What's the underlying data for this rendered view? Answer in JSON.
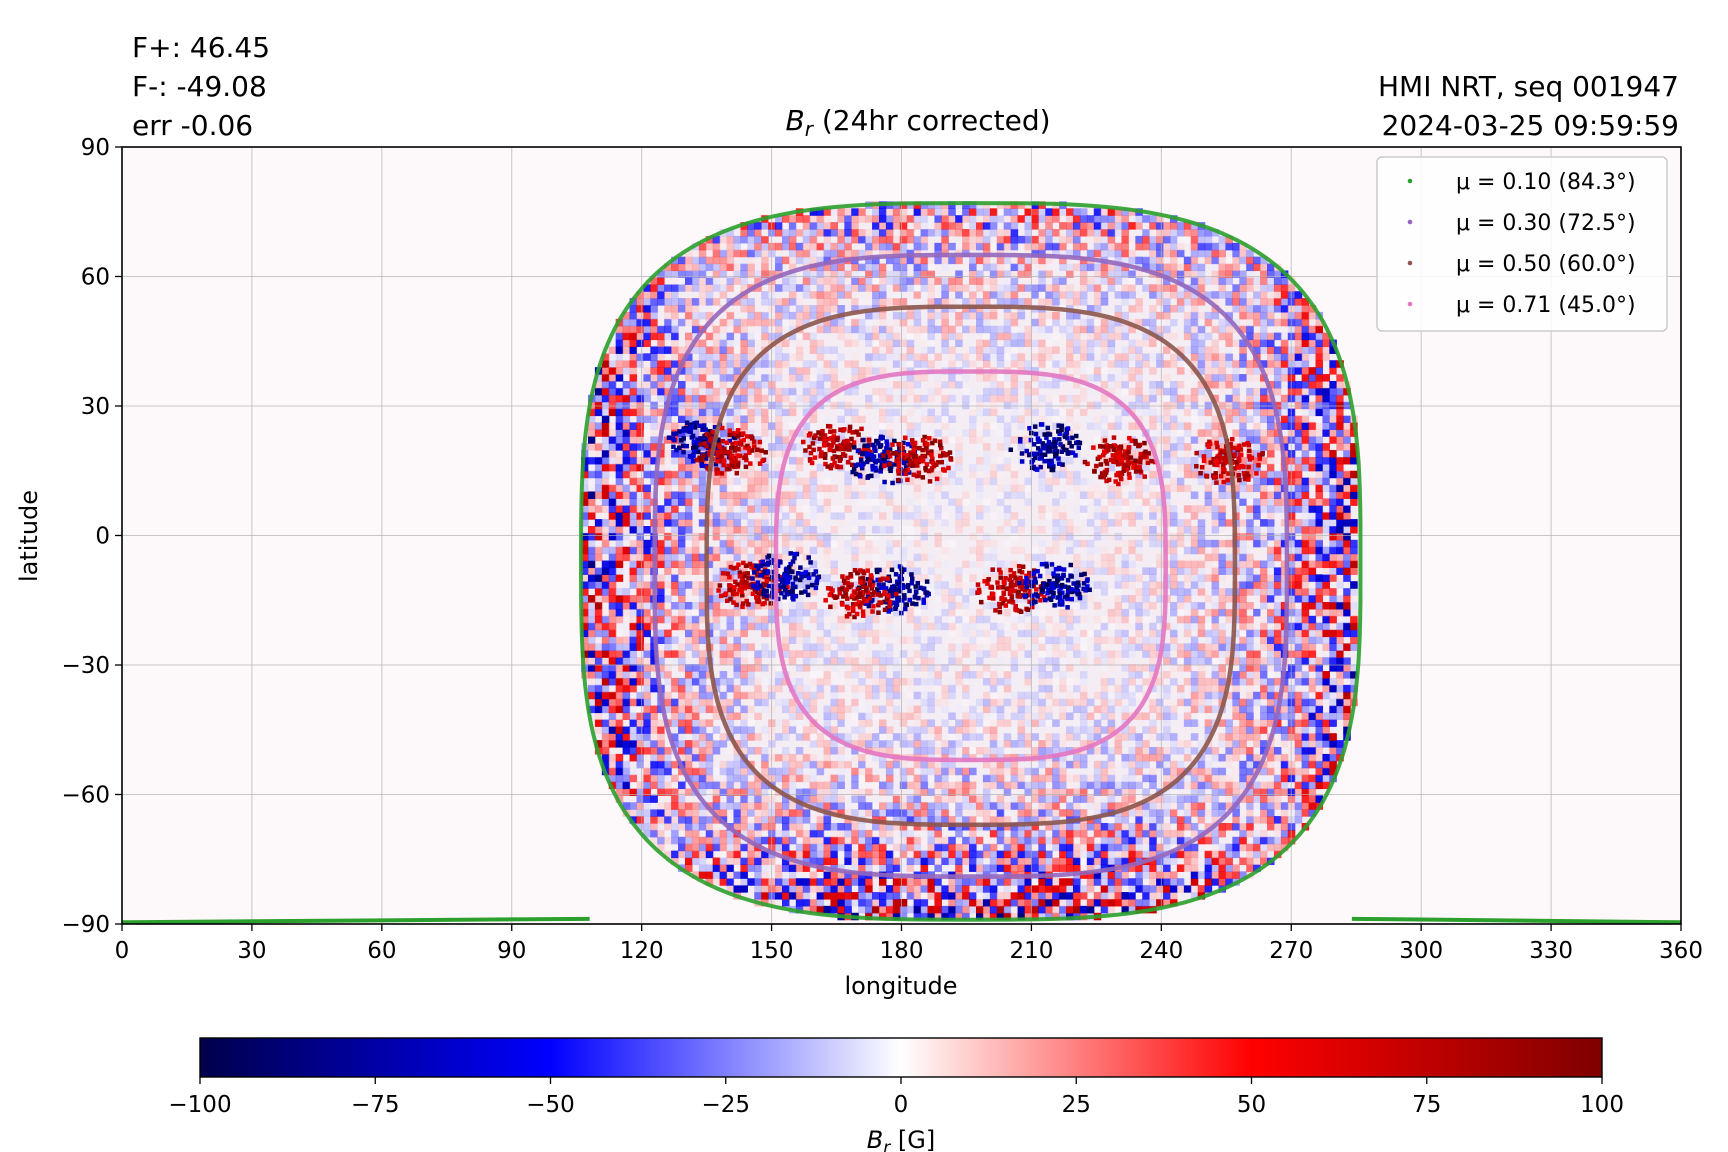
{
  "chart_data": {
    "type": "heatmap",
    "title": {
      "symbol": "B",
      "subscript": "r",
      "text": " (24hr corrected)"
    },
    "xlabel": "longitude",
    "ylabel": "latitude",
    "xlim": [
      0,
      360
    ],
    "ylim": [
      -90,
      90
    ],
    "xticks": [
      0,
      30,
      60,
      90,
      120,
      150,
      180,
      210,
      240,
      270,
      300,
      330,
      360
    ],
    "yticks": [
      90,
      60,
      30,
      0,
      -30,
      -60,
      -90
    ],
    "ytick_labels": [
      "90",
      "60",
      "30",
      "0",
      "−30",
      "−60",
      "−90"
    ],
    "grid": true,
    "stats": [
      "F+: 46.45",
      "F-: -49.08",
      "err -0.06"
    ],
    "source": [
      "HMI NRT, seq 001947",
      "2024-03-25 09:59:59"
    ],
    "legend_position": "top-right",
    "mu_contours": [
      {
        "label": "μ = 0.10 (84.3°)",
        "mu": 0.1,
        "color": "#2ca02c",
        "lon_center": 196,
        "half_width": 90,
        "lat_top": 77,
        "lat_bottom": -89
      },
      {
        "label": "μ = 0.30 (72.5°)",
        "mu": 0.3,
        "color": "#9467bd",
        "lon_center": 196,
        "half_width": 73,
        "lat_top": 65,
        "lat_bottom": -79
      },
      {
        "label": "μ = 0.50 (60.0°)",
        "mu": 0.5,
        "color": "#8c564b",
        "lon_center": 196,
        "half_width": 61,
        "lat_top": 53,
        "lat_bottom": -67
      },
      {
        "label": "μ = 0.71 (45.0°)",
        "mu": 0.71,
        "color": "#e377c2",
        "lon_center": 196,
        "half_width": 45,
        "lat_top": 38,
        "lat_bottom": -52
      }
    ],
    "active_regions": [
      {
        "lon": 134,
        "lat": 22,
        "sign": "negative"
      },
      {
        "lon": 140,
        "lat": 20,
        "sign": "positive"
      },
      {
        "lon": 165,
        "lat": 21,
        "sign": "positive"
      },
      {
        "lon": 175,
        "lat": 18,
        "sign": "negative"
      },
      {
        "lon": 183,
        "lat": 18,
        "sign": "positive"
      },
      {
        "lon": 213,
        "lat": 21,
        "sign": "negative"
      },
      {
        "lon": 230,
        "lat": 18,
        "sign": "positive"
      },
      {
        "lon": 255,
        "lat": 18,
        "sign": "positive"
      },
      {
        "lon": 145,
        "lat": -11,
        "sign": "positive"
      },
      {
        "lon": 153,
        "lat": -9,
        "sign": "negative"
      },
      {
        "lon": 178,
        "lat": -12,
        "sign": "negative"
      },
      {
        "lon": 170,
        "lat": -13,
        "sign": "positive"
      },
      {
        "lon": 205,
        "lat": -12,
        "sign": "positive"
      },
      {
        "lon": 215,
        "lat": -11,
        "sign": "negative"
      }
    ],
    "colorbar": {
      "label_symbol": "B",
      "label_subscript": "r",
      "label_unit": " [G]",
      "min": -100,
      "max": 100,
      "ticks": [
        -100,
        -75,
        -50,
        -25,
        0,
        25,
        50,
        75,
        100
      ],
      "tick_labels": [
        "−100",
        "−75",
        "−50",
        "−25",
        "0",
        "25",
        "50",
        "75",
        "100"
      ],
      "colors": [
        "#00004c",
        "#0000ff",
        "#ffffff",
        "#ff0000",
        "#7f0000"
      ]
    }
  }
}
